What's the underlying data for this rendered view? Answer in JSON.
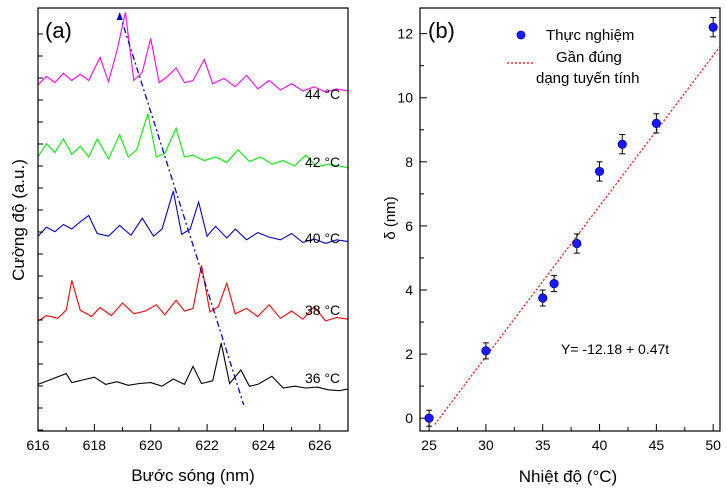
{
  "chart_data": [
    {
      "panel": "(a)",
      "type": "line",
      "xlabel": "Bước sóng (nm)",
      "ylabel": "Cường độ (a.u.)",
      "xlim": [
        616,
        627
      ],
      "xticks": [
        "616",
        "618",
        "620",
        "622",
        "624",
        "626"
      ],
      "series": [
        {
          "name": "36 °C",
          "color": "#000000",
          "x": [
            616.0,
            616.5,
            617.0,
            617.2,
            617.6,
            618.0,
            618.4,
            618.8,
            619.2,
            619.6,
            620.0,
            620.4,
            620.8,
            621.2,
            621.5,
            621.8,
            622.2,
            622.5,
            622.8,
            623.2,
            623.5,
            623.8,
            624.3,
            624.7,
            625.1,
            625.5,
            625.9,
            626.3,
            626.7,
            627.0
          ],
          "y": [
            0.24,
            0.3,
            0.36,
            0.26,
            0.29,
            0.32,
            0.24,
            0.27,
            0.23,
            0.25,
            0.26,
            0.22,
            0.3,
            0.24,
            0.44,
            0.25,
            0.28,
            0.7,
            0.25,
            0.4,
            0.22,
            0.24,
            0.33,
            0.2,
            0.22,
            0.2,
            0.21,
            0.18,
            0.17,
            0.19
          ]
        },
        {
          "name": "38 °C",
          "color": "#ff0000",
          "x": [
            616.0,
            616.3,
            616.7,
            617.0,
            617.2,
            617.5,
            617.9,
            618.2,
            618.6,
            619.0,
            619.4,
            619.8,
            620.2,
            620.5,
            620.9,
            621.2,
            621.5,
            621.8,
            622.1,
            622.4,
            622.7,
            623.0,
            623.4,
            623.8,
            624.2,
            624.6,
            625.0,
            625.4,
            625.8,
            626.2,
            626.6,
            627.0
          ],
          "y": [
            0.1,
            0.16,
            0.13,
            0.22,
            0.55,
            0.22,
            0.15,
            0.25,
            0.16,
            0.3,
            0.18,
            0.21,
            0.28,
            0.17,
            0.33,
            0.21,
            0.24,
            0.72,
            0.2,
            0.26,
            0.52,
            0.18,
            0.24,
            0.15,
            0.28,
            0.13,
            0.21,
            0.12,
            0.26,
            0.1,
            0.14,
            0.12
          ]
        },
        {
          "name": "40 °C",
          "color": "#0000cc",
          "x": [
            616.0,
            616.3,
            616.6,
            616.9,
            617.2,
            617.5,
            617.8,
            618.1,
            618.5,
            618.9,
            619.3,
            619.7,
            620.1,
            620.4,
            620.8,
            621.1,
            621.4,
            621.7,
            622.0,
            622.3,
            622.7,
            623.0,
            623.4,
            623.8,
            624.2,
            624.6,
            625.0,
            625.4,
            625.8,
            626.2,
            626.6,
            627.0
          ],
          "y": [
            0.22,
            0.32,
            0.27,
            0.35,
            0.3,
            0.38,
            0.45,
            0.25,
            0.22,
            0.34,
            0.23,
            0.42,
            0.22,
            0.3,
            0.72,
            0.24,
            0.3,
            0.6,
            0.22,
            0.33,
            0.2,
            0.3,
            0.18,
            0.26,
            0.21,
            0.18,
            0.25,
            0.15,
            0.19,
            0.14,
            0.18,
            0.16
          ]
        },
        {
          "name": "42 °C",
          "color": "#00ee00",
          "x": [
            616.0,
            616.3,
            616.6,
            616.9,
            617.2,
            617.5,
            617.8,
            618.1,
            618.5,
            618.9,
            619.2,
            619.5,
            619.9,
            620.2,
            620.5,
            620.9,
            621.2,
            621.5,
            621.9,
            622.3,
            622.7,
            623.1,
            623.5,
            623.9,
            624.3,
            624.7,
            625.1,
            625.5,
            625.9,
            626.3,
            626.7,
            627.0
          ],
          "y": [
            0.3,
            0.45,
            0.35,
            0.5,
            0.33,
            0.42,
            0.3,
            0.5,
            0.28,
            0.55,
            0.3,
            0.38,
            0.78,
            0.3,
            0.34,
            0.62,
            0.3,
            0.32,
            0.26,
            0.3,
            0.24,
            0.38,
            0.25,
            0.3,
            0.22,
            0.26,
            0.2,
            0.32,
            0.19,
            0.22,
            0.2,
            0.18
          ]
        },
        {
          "name": "44 °C",
          "color": "#ff00ff",
          "x": [
            616.0,
            616.3,
            616.6,
            616.9,
            617.2,
            617.5,
            617.8,
            618.2,
            618.5,
            618.8,
            619.1,
            619.4,
            619.7,
            620.0,
            620.3,
            620.6,
            620.9,
            621.2,
            621.5,
            621.9,
            622.2,
            622.6,
            623.0,
            623.4,
            623.8,
            624.2,
            624.6,
            625.0,
            625.4,
            625.8,
            626.2,
            626.6,
            627.0
          ],
          "y": [
            0.26,
            0.34,
            0.28,
            0.37,
            0.3,
            0.36,
            0.3,
            0.52,
            0.29,
            0.58,
            0.95,
            0.3,
            0.38,
            0.7,
            0.28,
            0.34,
            0.42,
            0.28,
            0.3,
            0.5,
            0.27,
            0.32,
            0.24,
            0.35,
            0.22,
            0.3,
            0.21,
            0.27,
            0.2,
            0.24,
            0.19,
            0.22,
            0.2
          ]
        }
      ],
      "trend_line": {
        "color": "#0000cc",
        "x": [
          618.9,
          623.3
        ]
      },
      "annotations": [
        "44 °C",
        "42 °C",
        "40 °C",
        "38 °C",
        "36 °C"
      ]
    },
    {
      "panel": "(b)",
      "type": "scatter",
      "xlabel": "Nhiệt độ (°C)",
      "ylabel": "δ (nm)",
      "xlim": [
        24.2,
        50.6
      ],
      "ylim": [
        -0.4,
        12.8
      ],
      "xticks": [
        25,
        30,
        35,
        40,
        45,
        50
      ],
      "yticks": [
        0,
        2,
        4,
        6,
        8,
        10,
        12
      ],
      "series": [
        {
          "name": "Thực nghiệm",
          "color": "#1a1aff",
          "x": [
            25,
            30,
            35,
            36,
            38,
            40,
            42,
            45,
            50
          ],
          "y": [
            0.0,
            2.1,
            3.75,
            4.2,
            5.45,
            7.7,
            8.55,
            9.2,
            12.2
          ],
          "err": [
            0.25,
            0.25,
            0.25,
            0.25,
            0.3,
            0.3,
            0.3,
            0.3,
            0.3
          ]
        }
      ],
      "fit": {
        "name": "Gần đúng dạng tuyến tính",
        "color": "#ff0000",
        "intercept": -12.18,
        "slope": 0.47
      },
      "legend": {
        "position": "top-right",
        "entries": [
          "Thực nghiệm",
          "Gần đúng",
          "dạng tuyến tính"
        ]
      },
      "equation": "Y= -12.18 + 0.47t"
    }
  ]
}
